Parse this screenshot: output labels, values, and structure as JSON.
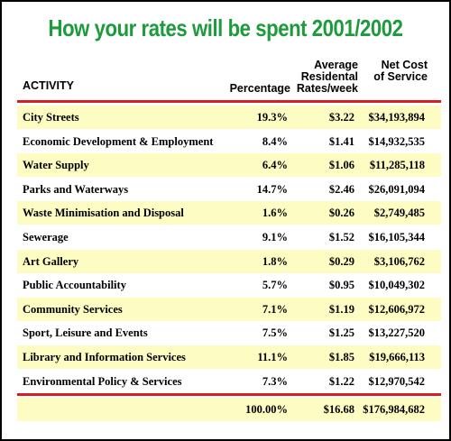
{
  "header": {
    "title": "How your rates will be spent 2001/2002"
  },
  "table": {
    "columns": [
      "ACTIVITY",
      "Percentage",
      "Average Residental Rates/week",
      "Net Cost of Service"
    ],
    "rows": [
      [
        "City Streets",
        "19.3%",
        "$3.22",
        "$34,193,894"
      ],
      [
        "Economic Development & Employment",
        "8.4%",
        "$1.41",
        "$14,932,535"
      ],
      [
        "Water Supply",
        "6.4%",
        "$1.06",
        "$11,285,118"
      ],
      [
        "Parks and Waterways",
        "14.7%",
        "$2.46",
        "$26,091,094"
      ],
      [
        "Waste Minimisation and Disposal",
        "1.6%",
        "$0.26",
        "$2,749,485"
      ],
      [
        "Sewerage",
        "9.1%",
        "$1.52",
        "$16,105,344"
      ],
      [
        "Art Gallery",
        "1.8%",
        "$0.29",
        "$3,106,762"
      ],
      [
        "Public Accountability",
        "5.7%",
        "$0.95",
        "$10,049,302"
      ],
      [
        "Community Services",
        "7.1%",
        "$1.19",
        "$12,606,972"
      ],
      [
        "Sport, Leisure and Events",
        "7.5%",
        "$1.25",
        "$13,227,520"
      ],
      [
        "Library and Information Services",
        "11.1%",
        "$1.85",
        "$19,666,113"
      ],
      [
        "Environmental Policy & Services",
        "7.3%",
        "$1.22",
        "$12,970,542"
      ]
    ],
    "total": [
      "100.00%",
      "$16.68",
      "$176,984,682"
    ]
  }
}
